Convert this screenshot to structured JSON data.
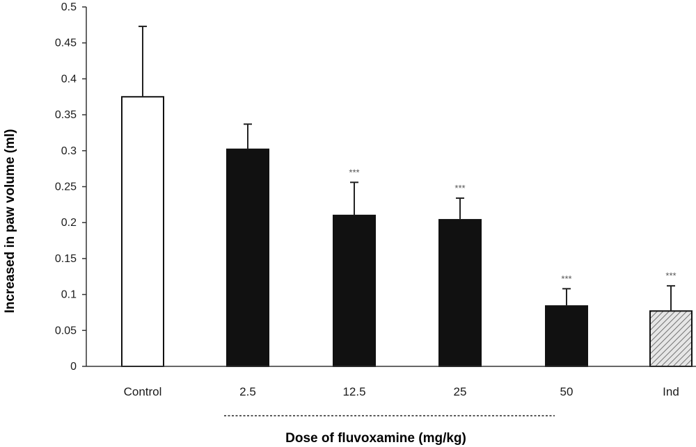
{
  "chart_data": {
    "type": "bar",
    "categories": [
      "Control",
      "2.5",
      "12.5",
      "25",
      "50",
      "Ind"
    ],
    "values": [
      0.375,
      0.302,
      0.21,
      0.204,
      0.084,
      0.077
    ],
    "error_bars": [
      0.098,
      0.035,
      0.046,
      0.03,
      0.024,
      0.035
    ],
    "significance": [
      "",
      "",
      "***",
      "***",
      "***",
      "***"
    ],
    "bar_styles": [
      "open",
      "solid",
      "solid",
      "solid",
      "solid",
      "hatched"
    ],
    "ylabel": "Increased in paw volume (ml)",
    "xlabel": "Dose of fluvoxamine (mg/kg)",
    "ylim": [
      0,
      0.5
    ],
    "yticks": [
      "0",
      "0.05",
      "0.1",
      "0.15",
      "0.2",
      "0.25",
      "0.3",
      "0.35",
      "0.4",
      "0.45",
      "0.5"
    ],
    "grid": false,
    "colors": {
      "open_fill": "#ffffff",
      "solid_fill": "#111111",
      "hatch_fill": "#e6e6e6",
      "hatch_line": "#555555",
      "outline": "#111111"
    }
  }
}
